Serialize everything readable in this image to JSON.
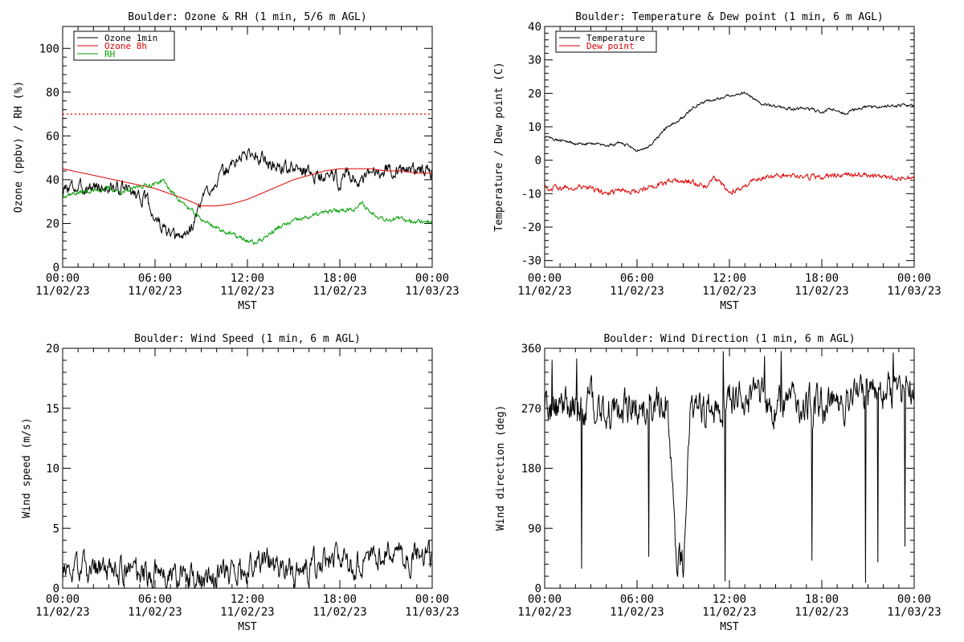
{
  "chart_data": [
    {
      "id": "ozone_rh",
      "type": "line",
      "title": "Boulder: Ozone & RH (1 min, 5/6 m AGL)",
      "xlabel": "MST",
      "ylabel": "Ozone (ppbv) / RH (%)",
      "ylim": [
        0,
        110
      ],
      "yticks": [
        0,
        20,
        40,
        60,
        80,
        100
      ],
      "xlim_hours": [
        0,
        24
      ],
      "xticks": [
        {
          "time": "00:00",
          "date": "11/02/23"
        },
        {
          "time": "06:00",
          "date": "11/02/23"
        },
        {
          "time": "12:00",
          "date": "11/02/23"
        },
        {
          "time": "18:00",
          "date": "11/02/23"
        },
        {
          "time": "00:00",
          "date": "11/03/23"
        }
      ],
      "legend": {
        "position": "top-left",
        "entries": [
          {
            "label": "Ozone 1min",
            "color": "#000000"
          },
          {
            "label": "Ozone 8h",
            "color": "#dd0000"
          },
          {
            "label": "RH",
            "color": "#00a000"
          }
        ]
      },
      "reference_line": {
        "y": 70,
        "color": "#dd0000",
        "style": "dotted"
      },
      "series": [
        {
          "name": "Ozone 1min",
          "color": "#000000",
          "noise": 2.5,
          "x": [
            0,
            0.5,
            1,
            2,
            3,
            4,
            5,
            5.5,
            6,
            6.5,
            7,
            7.5,
            8,
            8.5,
            9,
            9.5,
            10,
            10.5,
            11,
            11.5,
            12,
            12.5,
            13,
            13.5,
            14,
            15,
            16,
            17,
            17.5,
            18,
            18.5,
            19,
            19.5,
            20,
            20.5,
            21,
            22,
            23,
            24
          ],
          "y": [
            34,
            37,
            36,
            37,
            36,
            36,
            33,
            30,
            22,
            18,
            14,
            13,
            15,
            20,
            30,
            36,
            40,
            43,
            47,
            50,
            52,
            52,
            50,
            47,
            46,
            45,
            44,
            40,
            43,
            38,
            45,
            40,
            38,
            43,
            44,
            45,
            44,
            45,
            44
          ]
        },
        {
          "name": "Ozone 8h",
          "color": "#dd0000",
          "noise": 0,
          "x": [
            0,
            2,
            4,
            6,
            8,
            9,
            10,
            11,
            12,
            13,
            14,
            15,
            16,
            17,
            18,
            19,
            20,
            21,
            22,
            23,
            24
          ],
          "y": [
            45,
            42,
            39,
            36,
            31,
            28,
            28,
            29,
            31,
            34,
            37,
            40,
            42,
            44,
            45,
            45,
            45,
            44,
            44,
            43,
            43
          ],
          "dashed_shift": 0
        },
        {
          "name": "RH",
          "color": "#00a000",
          "noise": 0.8,
          "x": [
            0,
            1,
            2,
            3,
            4,
            5,
            6,
            6.5,
            7,
            8,
            9,
            10,
            11,
            12,
            12.5,
            13,
            14,
            15,
            16,
            17,
            18,
            19,
            19.5,
            20,
            21,
            22,
            23,
            24
          ],
          "y": [
            33,
            34,
            35,
            36,
            34,
            37,
            38,
            40,
            35,
            28,
            22,
            18,
            15,
            12,
            11,
            13,
            18,
            21,
            23,
            25,
            26,
            27,
            29,
            25,
            22,
            22,
            21,
            21
          ]
        }
      ]
    },
    {
      "id": "temp_dew",
      "type": "line",
      "title": "Boulder: Temperature & Dew point (1 min, 6 m AGL)",
      "xlabel": "MST",
      "ylabel": "Temperature / Dew point (C)",
      "ylim": [
        -32,
        40
      ],
      "yticks": [
        -30,
        -20,
        -10,
        0,
        10,
        20,
        30,
        40
      ],
      "xlim_hours": [
        0,
        24
      ],
      "xticks": [
        {
          "time": "00:00",
          "date": "11/02/23"
        },
        {
          "time": "06:00",
          "date": "11/02/23"
        },
        {
          "time": "12:00",
          "date": "11/02/23"
        },
        {
          "time": "18:00",
          "date": "11/02/23"
        },
        {
          "time": "00:00",
          "date": "11/03/23"
        }
      ],
      "legend": {
        "position": "top-left",
        "entries": [
          {
            "label": "Temperature",
            "color": "#000000"
          },
          {
            "label": "Dew point",
            "color": "#dd0000"
          }
        ]
      },
      "series": [
        {
          "name": "Temperature",
          "color": "#000000",
          "noise": 0.35,
          "x": [
            0,
            1,
            2,
            3,
            4,
            5,
            6,
            6.5,
            7,
            8,
            9,
            10,
            11,
            12,
            13,
            13.5,
            14,
            15,
            16,
            17,
            17.5,
            18,
            18.5,
            19,
            19.5,
            20,
            21,
            22,
            23,
            24
          ],
          "y": [
            7,
            6,
            5,
            5,
            4.5,
            5,
            3,
            3.5,
            5,
            10,
            13,
            17,
            18,
            19.5,
            20,
            18.5,
            17,
            16,
            15.5,
            15.5,
            15,
            14,
            15.5,
            15,
            14,
            15,
            16,
            16,
            16.5,
            16.5
          ]
        },
        {
          "name": "Dew point",
          "color": "#dd0000",
          "noise": 0.6,
          "x": [
            0,
            1,
            2,
            3,
            4,
            5,
            6,
            7,
            8,
            9,
            10,
            10.5,
            11,
            11.5,
            12,
            12.5,
            13,
            14,
            15,
            16,
            17,
            18,
            19,
            20,
            21,
            22,
            23,
            24
          ],
          "y": [
            -8,
            -8.5,
            -8,
            -8.5,
            -10,
            -9,
            -9.5,
            -8,
            -6.5,
            -6,
            -7,
            -8,
            -5,
            -7,
            -10,
            -9,
            -8,
            -5,
            -5,
            -4.5,
            -5,
            -5,
            -4.5,
            -4,
            -4.5,
            -5,
            -5.5,
            -5.5
          ]
        }
      ]
    },
    {
      "id": "wind_speed",
      "type": "line",
      "title": "Boulder: Wind Speed (1 min, 6 m AGL)",
      "xlabel": "MST",
      "ylabel": "Wind speed (m/s)",
      "ylim": [
        0,
        20
      ],
      "yticks": [
        0,
        5,
        10,
        15,
        20
      ],
      "xlim_hours": [
        0,
        24
      ],
      "xticks": [
        {
          "time": "00:00",
          "date": "11/02/23"
        },
        {
          "time": "06:00",
          "date": "11/02/23"
        },
        {
          "time": "12:00",
          "date": "11/02/23"
        },
        {
          "time": "18:00",
          "date": "11/02/23"
        },
        {
          "time": "00:00",
          "date": "11/03/23"
        }
      ],
      "series": [
        {
          "name": "Wind speed",
          "color": "#000000",
          "noise": 0.9,
          "clip_min": 0,
          "x": [
            0,
            2,
            4,
            6,
            8,
            10,
            11,
            12,
            13,
            14,
            15,
            16,
            17,
            18,
            19,
            20,
            21,
            22,
            23,
            24
          ],
          "y": [
            1.5,
            1.6,
            1.4,
            1.3,
            1.0,
            1.0,
            1.6,
            1.9,
            2.3,
            1.8,
            1.4,
            1.7,
            2.3,
            2.5,
            1.8,
            2.4,
            3.0,
            2.7,
            2.5,
            2.6
          ]
        }
      ]
    },
    {
      "id": "wind_direction",
      "type": "line",
      "title": "Boulder: Wind Direction (1 min, 6 m AGL)",
      "xlabel": "MST",
      "ylabel": "Wind direction (deg)",
      "ylim": [
        0,
        360
      ],
      "yticks": [
        0,
        90,
        180,
        270,
        360
      ],
      "xlim_hours": [
        0,
        24
      ],
      "xticks": [
        {
          "time": "00:00",
          "date": "11/02/23"
        },
        {
          "time": "06:00",
          "date": "11/02/23"
        },
        {
          "time": "12:00",
          "date": "11/02/23"
        },
        {
          "time": "18:00",
          "date": "11/02/23"
        },
        {
          "time": "00:00",
          "date": "11/03/23"
        }
      ],
      "series": [
        {
          "name": "Wind direction",
          "color": "#000000",
          "noise": 22,
          "clip_min": 0,
          "clip_max": 360,
          "wrap": true,
          "x": [
            0,
            1,
            2,
            3,
            4,
            5,
            6,
            7,
            8,
            8.5,
            9,
            9.5,
            10,
            11,
            12,
            13,
            14,
            15,
            16,
            17,
            18,
            19,
            20,
            21,
            22,
            23,
            24
          ],
          "y": [
            270,
            275,
            265,
            280,
            265,
            270,
            280,
            275,
            290,
            40,
            30,
            290,
            270,
            265,
            280,
            285,
            280,
            270,
            275,
            270,
            275,
            280,
            290,
            290,
            295,
            300,
            300
          ]
        }
      ]
    }
  ]
}
